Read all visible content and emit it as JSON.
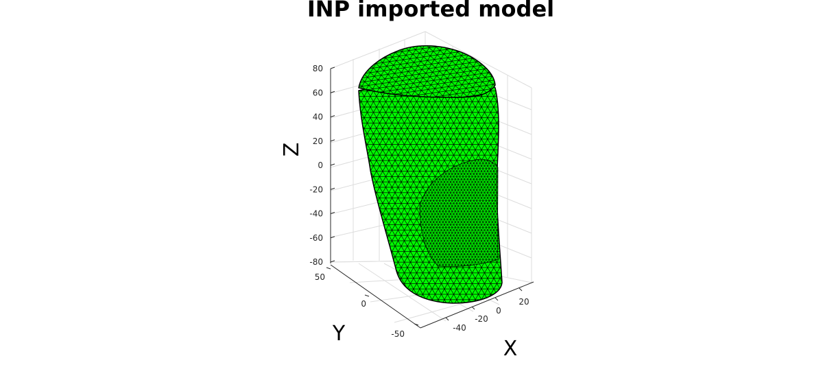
{
  "figure": {
    "title": "INP imported model",
    "mesh_color": "#00ff00",
    "edge_color": "#000000"
  },
  "axes": {
    "x": {
      "label": "X",
      "ticks": [
        "-40",
        "-20",
        "0",
        "20"
      ]
    },
    "y": {
      "label": "Y",
      "ticks": [
        "50",
        "0",
        "-50"
      ]
    },
    "z": {
      "label": "Z",
      "ticks": [
        "80",
        "60",
        "40",
        "20",
        "0",
        "-20",
        "-40",
        "-60",
        "-80"
      ]
    },
    "grid": true,
    "box": false
  }
}
